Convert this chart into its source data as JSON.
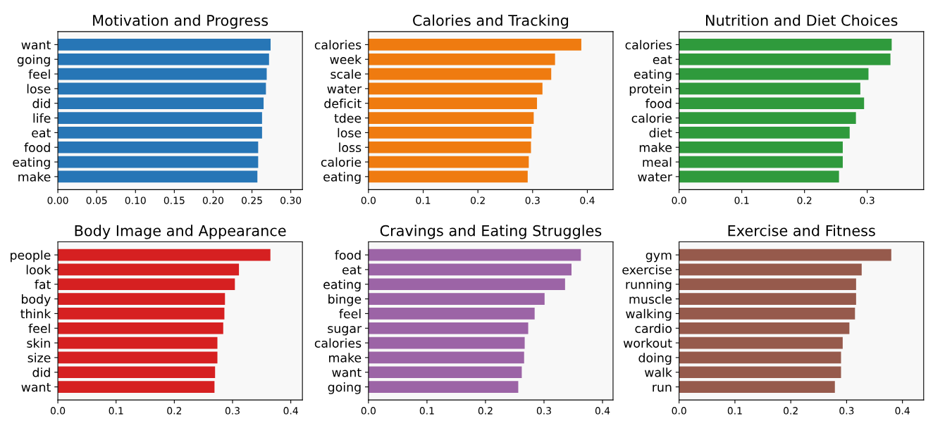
{
  "chart_data": [
    {
      "type": "bar",
      "orientation": "horizontal",
      "title": "Motivation and Progress",
      "categories": [
        "want",
        "going",
        "feel",
        "lose",
        "did",
        "life",
        "eat",
        "food",
        "eating",
        "make"
      ],
      "values": [
        0.274,
        0.272,
        0.269,
        0.268,
        0.265,
        0.263,
        0.263,
        0.258,
        0.258,
        0.257
      ],
      "color": "#2776b6",
      "xlim": [
        0,
        0.315
      ],
      "xticks": [
        {
          "value": 0,
          "label": "0.00"
        },
        0.05,
        {
          "value": 0.1,
          "label": "0.10"
        },
        0.15,
        {
          "value": 0.2,
          "label": "0.20"
        },
        0.25,
        {
          "value": 0.3,
          "label": "0.30"
        }
      ],
      "grid": false
    },
    {
      "type": "bar",
      "orientation": "horizontal",
      "title": "Calories and Tracking",
      "categories": [
        "calories",
        "week",
        "scale",
        "water",
        "deficit",
        "tdee",
        "lose",
        "loss",
        "calorie",
        "eating"
      ],
      "values": [
        0.389,
        0.341,
        0.334,
        0.318,
        0.308,
        0.302,
        0.298,
        0.297,
        0.293,
        0.291
      ],
      "color": "#ef7b10",
      "xlim": [
        0,
        0.447
      ],
      "xticks": [
        {
          "value": 0,
          "label": "0.0"
        },
        0.1,
        0.2,
        0.3,
        0.4
      ],
      "grid": false
    },
    {
      "type": "bar",
      "orientation": "horizontal",
      "title": "Nutrition and Diet Choices",
      "categories": [
        "calories",
        "eat",
        "eating",
        "protein",
        "food",
        "calorie",
        "diet",
        "make",
        "meal",
        "water"
      ],
      "values": [
        0.339,
        0.337,
        0.302,
        0.289,
        0.295,
        0.282,
        0.272,
        0.261,
        0.261,
        0.255
      ],
      "color": "#2f9a3c",
      "xlim": [
        0,
        0.39
      ],
      "xticks": [
        {
          "value": 0,
          "label": "0.0"
        },
        0.1,
        0.2,
        0.3
      ],
      "grid": false
    },
    {
      "type": "bar",
      "orientation": "horizontal",
      "title": "Body Image and Appearance",
      "categories": [
        "people",
        "look",
        "fat",
        "body",
        "think",
        "feel",
        "skin",
        "size",
        "did",
        "want"
      ],
      "values": [
        0.365,
        0.311,
        0.304,
        0.287,
        0.286,
        0.284,
        0.274,
        0.274,
        0.27,
        0.269
      ],
      "color": "#d62021",
      "xlim": [
        0,
        0.42
      ],
      "xticks": [
        {
          "value": 0,
          "label": "0.0"
        },
        0.1,
        0.2,
        0.3,
        0.4
      ],
      "grid": false
    },
    {
      "type": "bar",
      "orientation": "horizontal",
      "title": "Cravings and Eating Struggles",
      "categories": [
        "food",
        "eat",
        "eating",
        "binge",
        "feel",
        "sugar",
        "calories",
        "make",
        "want",
        "going"
      ],
      "values": [
        0.363,
        0.347,
        0.336,
        0.301,
        0.284,
        0.273,
        0.267,
        0.266,
        0.262,
        0.256
      ],
      "color": "#9c64a6",
      "xlim": [
        0,
        0.418
      ],
      "xticks": [
        {
          "value": 0,
          "label": "0.0"
        },
        0.1,
        0.2,
        0.3,
        0.4
      ],
      "grid": false
    },
    {
      "type": "bar",
      "orientation": "horizontal",
      "title": "Exercise and Fitness",
      "categories": [
        "gym",
        "exercise",
        "running",
        "muscle",
        "walking",
        "cardio",
        "workout",
        "doing",
        "walk",
        "run"
      ],
      "values": [
        0.38,
        0.327,
        0.317,
        0.317,
        0.315,
        0.305,
        0.293,
        0.29,
        0.29,
        0.279
      ],
      "color": "#965a4c",
      "xlim": [
        0,
        0.438
      ],
      "xticks": [
        {
          "value": 0,
          "label": "0.0"
        },
        0.1,
        0.2,
        0.3,
        0.4
      ],
      "grid": false
    }
  ]
}
